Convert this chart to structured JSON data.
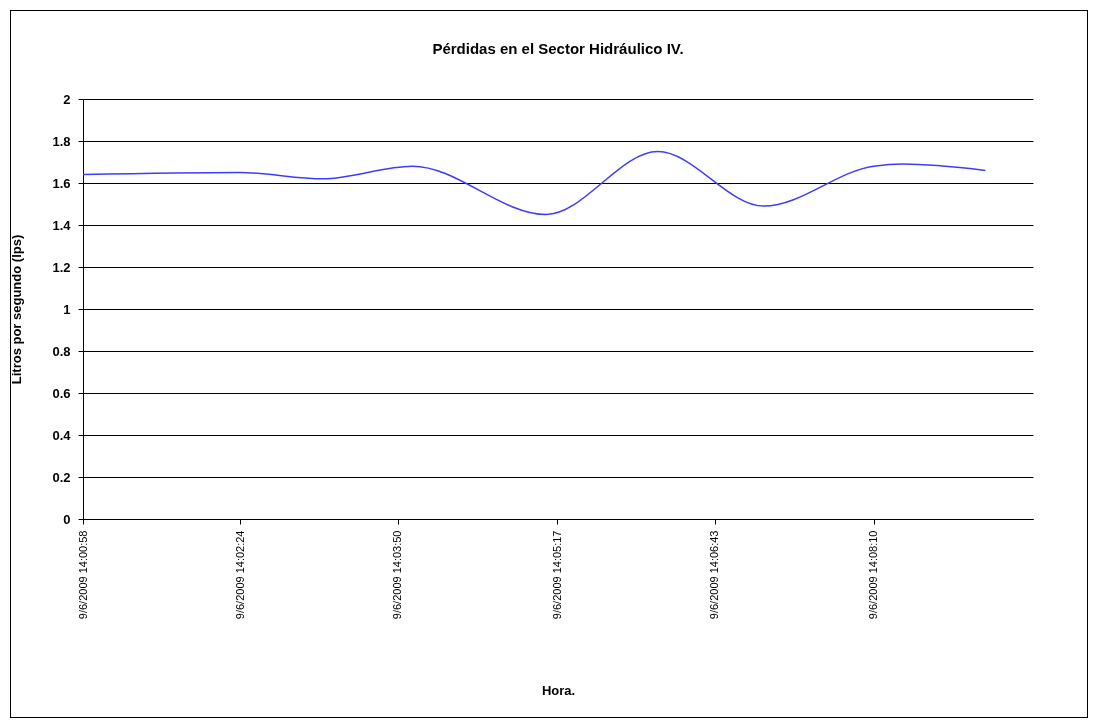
{
  "chart_data": {
    "type": "line",
    "title": "Pérdidas en el  Sector Hidráulico IV.",
    "xlabel": "Hora.",
    "ylabel": "Litros por segundo (lps)",
    "x": [
      "2009-06-09T14:00:58",
      "2009-06-09T14:02:24",
      "2009-06-09T14:03:09",
      "2009-06-09T14:03:58",
      "2009-06-09T14:05:11",
      "2009-06-09T14:06:12",
      "2009-06-09T14:07:10",
      "2009-06-09T14:08:10",
      "2009-06-09T14:08:26",
      "2009-06-09T14:09:11"
    ],
    "series": [
      {
        "color": "#3c3cff",
        "values": [
          1.64,
          1.65,
          1.62,
          1.68,
          1.45,
          1.75,
          1.49,
          1.68,
          1.69,
          1.66
        ]
      }
    ],
    "xlim": [
      "2009-06-09T14:00:58",
      "2009-06-09T14:09:37"
    ],
    "xticks": [
      {
        "value": "2009-06-09T14:00:58",
        "label": "9/6/2009 14:00:58"
      },
      {
        "value": "2009-06-09T14:02:24",
        "label": "9/6/2009 14:02:24"
      },
      {
        "value": "2009-06-09T14:03:50",
        "label": "9/6/2009 14:03:50"
      },
      {
        "value": "2009-06-09T14:05:17",
        "label": "9/6/2009 14:05:17"
      },
      {
        "value": "2009-06-09T14:06:43",
        "label": "9/6/2009 14:06:43"
      },
      {
        "value": "2009-06-09T14:08:10",
        "label": "9/6/2009 14:08:10"
      }
    ],
    "ylim": [
      0,
      2
    ],
    "yticks": [
      0,
      0.2,
      0.4,
      0.6,
      0.8,
      1,
      1.2,
      1.4,
      1.6,
      1.8,
      2
    ],
    "grid": "y",
    "legend": false,
    "marker": "none",
    "line_style": "solid"
  }
}
